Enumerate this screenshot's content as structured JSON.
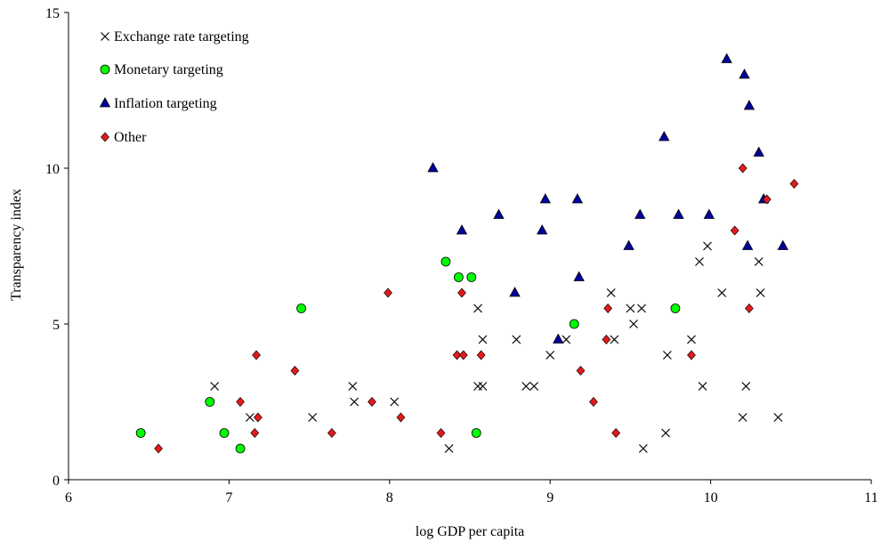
{
  "chart_data": {
    "type": "scatter",
    "title": "",
    "xlabel": "log GDP per capita",
    "ylabel": "Transparency index",
    "xlim": [
      6,
      11
    ],
    "ylim": [
      0,
      15
    ],
    "xticks": [
      "6",
      "7",
      "8",
      "9",
      "10",
      "11"
    ],
    "yticks": [
      "0",
      "5",
      "10",
      "15"
    ],
    "grid": false,
    "legend_position": "top-left",
    "series": [
      {
        "name": "Exchange rate targeting",
        "marker": "x",
        "color": "#000000",
        "points": [
          [
            6.91,
            3
          ],
          [
            7.13,
            2
          ],
          [
            7.52,
            2
          ],
          [
            7.77,
            3
          ],
          [
            7.78,
            2.5
          ],
          [
            8.03,
            2.5
          ],
          [
            8.37,
            1
          ],
          [
            8.55,
            3
          ],
          [
            8.55,
            5.5
          ],
          [
            8.58,
            3
          ],
          [
            8.58,
            4.5
          ],
          [
            8.79,
            4.5
          ],
          [
            8.85,
            3
          ],
          [
            8.9,
            3
          ],
          [
            9.0,
            4
          ],
          [
            9.1,
            4.5
          ],
          [
            9.38,
            6
          ],
          [
            9.4,
            4.5
          ],
          [
            9.5,
            5.5
          ],
          [
            9.52,
            5
          ],
          [
            9.57,
            5.5
          ],
          [
            9.58,
            1
          ],
          [
            9.72,
            1.5
          ],
          [
            9.73,
            4
          ],
          [
            9.88,
            4.5
          ],
          [
            9.93,
            7
          ],
          [
            9.95,
            3
          ],
          [
            9.98,
            7.5
          ],
          [
            10.07,
            6
          ],
          [
            10.2,
            2
          ],
          [
            10.22,
            3
          ],
          [
            10.3,
            7
          ],
          [
            10.31,
            6
          ],
          [
            10.42,
            2
          ]
        ]
      },
      {
        "name": "Monetary targeting",
        "marker": "circle",
        "color": "#00ff00",
        "points": [
          [
            6.45,
            1.5
          ],
          [
            6.88,
            2.5
          ],
          [
            6.97,
            1.5
          ],
          [
            7.07,
            1
          ],
          [
            7.45,
            5.5
          ],
          [
            8.35,
            7
          ],
          [
            8.43,
            6.5
          ],
          [
            8.51,
            6.5
          ],
          [
            8.54,
            1.5
          ],
          [
            9.15,
            5
          ],
          [
            9.78,
            5.5
          ]
        ]
      },
      {
        "name": "Inflation targeting",
        "marker": "triangle",
        "color": "#0000a0",
        "points": [
          [
            8.27,
            10
          ],
          [
            8.45,
            8
          ],
          [
            8.68,
            8.5
          ],
          [
            8.78,
            6
          ],
          [
            8.95,
            8
          ],
          [
            8.97,
            9
          ],
          [
            9.05,
            4.5
          ],
          [
            9.17,
            9
          ],
          [
            9.18,
            6.5
          ],
          [
            9.49,
            7.5
          ],
          [
            9.56,
            8.5
          ],
          [
            9.71,
            11
          ],
          [
            9.8,
            8.5
          ],
          [
            9.99,
            8.5
          ],
          [
            10.1,
            13.5
          ],
          [
            10.21,
            13
          ],
          [
            10.23,
            7.5
          ],
          [
            10.24,
            12
          ],
          [
            10.3,
            10.5
          ],
          [
            10.33,
            9
          ],
          [
            10.45,
            7.5
          ]
        ]
      },
      {
        "name": "Other",
        "marker": "diamond",
        "color": "#e31a1c",
        "points": [
          [
            6.56,
            1
          ],
          [
            7.07,
            2.5
          ],
          [
            7.16,
            1.5
          ],
          [
            7.17,
            4
          ],
          [
            7.18,
            2
          ],
          [
            7.41,
            3.5
          ],
          [
            7.64,
            1.5
          ],
          [
            7.89,
            2.5
          ],
          [
            7.99,
            6
          ],
          [
            8.07,
            2
          ],
          [
            8.32,
            1.5
          ],
          [
            8.42,
            4
          ],
          [
            8.46,
            4
          ],
          [
            8.45,
            6
          ],
          [
            8.57,
            4
          ],
          [
            9.19,
            3.5
          ],
          [
            9.27,
            2.5
          ],
          [
            9.35,
            4.5
          ],
          [
            9.36,
            5.5
          ],
          [
            9.41,
            1.5
          ],
          [
            9.88,
            4
          ],
          [
            10.15,
            8
          ],
          [
            10.2,
            10
          ],
          [
            10.24,
            5.5
          ],
          [
            10.35,
            9
          ],
          [
            10.52,
            9.5
          ]
        ]
      }
    ]
  }
}
